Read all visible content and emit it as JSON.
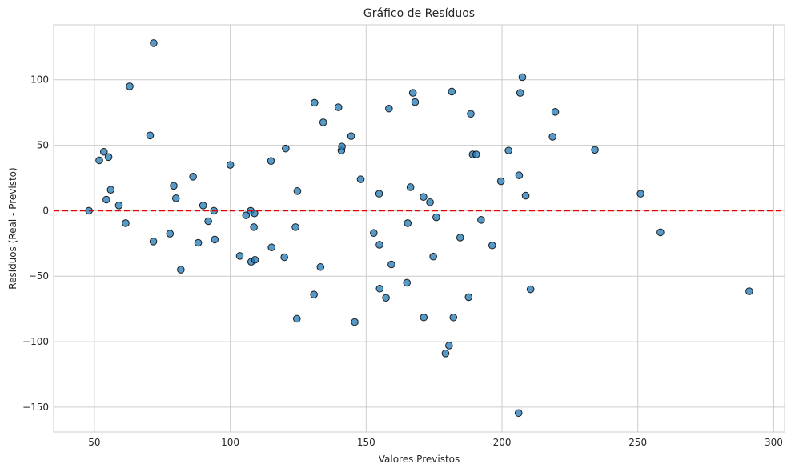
{
  "chart_data": {
    "type": "scatter",
    "title": "Gráfico de Resíduos",
    "xlabel": "Valores Previstos",
    "ylabel": "Resíduos (Real - Previsto)",
    "xlim": [
      35,
      304
    ],
    "ylim": [
      -169,
      142
    ],
    "x_ticks": [
      50,
      100,
      150,
      200,
      250,
      300
    ],
    "y_ticks": [
      -150,
      -100,
      -50,
      0,
      50,
      100
    ],
    "y_tick_labels": [
      "−150",
      "−100",
      "−50",
      "0",
      "50",
      "100"
    ],
    "x_tick_labels": [
      "50",
      "100",
      "150",
      "200",
      "250",
      "300"
    ],
    "grid": true,
    "point_color": "#1f77b4",
    "reference_line": {
      "y": 0,
      "color": "#e00000",
      "style": "dashed"
    },
    "series": [
      {
        "x": [
          48.0,
          51.8,
          53.5,
          54.4,
          55.2,
          56.0,
          59.0,
          61.5,
          63.0,
          70.5,
          71.7,
          71.8,
          77.8,
          79.2,
          80.0,
          81.8,
          86.3,
          88.2,
          90.0,
          91.9,
          94.0,
          94.3,
          100.0,
          103.5,
          105.8,
          107.5,
          107.7,
          108.7,
          108.9,
          109.1,
          115.0,
          115.2,
          119.9,
          120.4,
          124.0,
          124.5,
          124.7,
          130.8,
          131.0,
          133.2,
          134.2,
          139.8,
          140.9,
          141.1,
          144.5,
          145.8,
          148.0,
          152.8,
          154.8,
          154.9,
          155.0,
          157.3,
          158.4,
          159.3,
          165.0,
          165.3,
          166.3,
          167.2,
          168.0,
          171.1,
          171.2,
          173.5,
          174.7,
          175.8,
          179.2,
          180.5,
          181.5,
          182.1,
          184.6,
          187.7,
          188.5,
          189.2,
          190.5,
          192.3,
          196.4,
          199.6,
          202.4,
          206.1,
          206.3,
          206.7,
          207.5,
          208.7,
          210.5,
          218.6,
          219.6,
          234.2,
          251.0,
          258.3,
          291.0
        ],
        "y": [
          0,
          38.5,
          45.0,
          8.5,
          41.0,
          16.0,
          4.0,
          -9.5,
          95.0,
          57.5,
          -23.5,
          128.0,
          -17.5,
          19.0,
          9.5,
          -45.0,
          26.0,
          -24.5,
          4.0,
          -8.0,
          0,
          -22.0,
          35.0,
          -34.5,
          -3.5,
          0,
          -39.0,
          -12.5,
          -2.0,
          -37.5,
          38.0,
          -28.0,
          -35.5,
          47.5,
          -12.5,
          -82.5,
          15.0,
          -64.0,
          82.5,
          -43.0,
          67.5,
          79.0,
          46.0,
          49.0,
          57.0,
          -85.0,
          24.0,
          -17.0,
          13.0,
          -26.0,
          -59.5,
          -66.5,
          78.0,
          -41.0,
          -55.0,
          -9.5,
          18.0,
          90.0,
          83.0,
          10.5,
          -81.5,
          6.5,
          -35.0,
          -5.0,
          -109.0,
          -103.0,
          91.0,
          -81.5,
          -20.5,
          -66.0,
          74.0,
          43.0,
          43.0,
          -7.0,
          -26.5,
          22.5,
          46.0,
          -154.5,
          27.0,
          90.0,
          102.0,
          11.5,
          -60.0,
          56.5,
          75.5,
          46.5,
          13.0,
          -16.5,
          -61.5
        ]
      }
    ]
  }
}
